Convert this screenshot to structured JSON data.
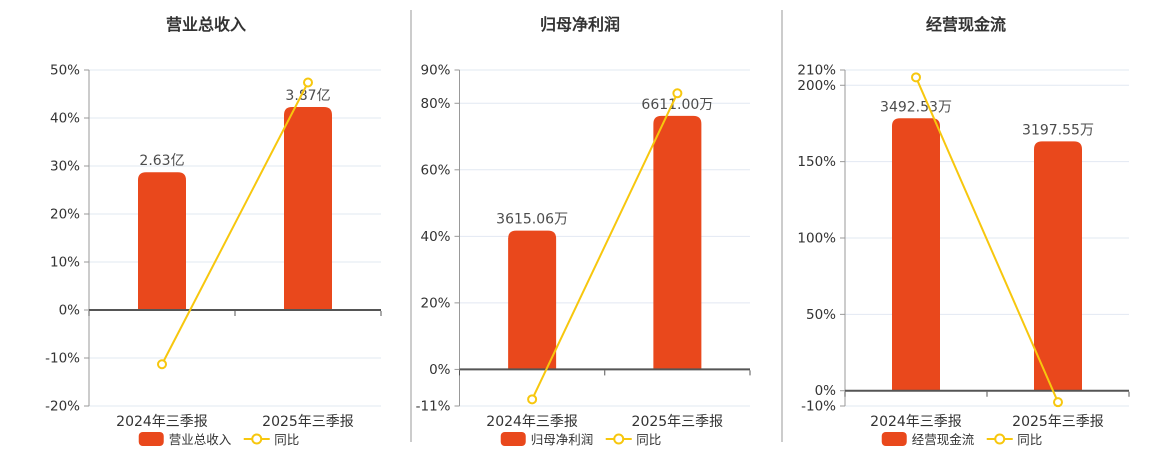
{
  "page": {
    "background": "#FFFFFF"
  },
  "colors": {
    "bar": "#E9481C",
    "line": "#F7C70E",
    "grid": "#E2E8F2",
    "axis": "#999999",
    "zero_line": "#555555",
    "title_text": "#333333",
    "tick_text": "#333333",
    "category_text": "#333333",
    "value_label_text": "#4D4D4D",
    "legend_text": "#333333",
    "divider": "#999999",
    "marker_fill": "#FFFFFF"
  },
  "chart_data": [
    {
      "key": "revenue",
      "type": "bar+line",
      "title": "营业总收入",
      "categories": [
        "2024年三季报",
        "2025年三季报"
      ],
      "category_keys": [
        "2024-q3",
        "2025-q3"
      ],
      "y_axis": {
        "min": -20,
        "max": 50,
        "tick_values": [
          50,
          40,
          30,
          20,
          10,
          0,
          -10,
          -20
        ],
        "tick_labels": [
          "50%",
          "40%",
          "30%",
          "20%",
          "10%",
          "0%",
          "-10%",
          "-20%"
        ]
      },
      "grid": true,
      "legend_position": "bottom",
      "bar_series": {
        "name": "营业总收入",
        "value_labels": [
          "2.63亿",
          "3.87亿"
        ],
        "drawn_top_pct": [
          28.7,
          42.3
        ]
      },
      "line_series": {
        "name": "同比",
        "values_pct": [
          -11.3,
          47.4
        ]
      }
    },
    {
      "key": "net-profit",
      "type": "bar+line",
      "title": "归母净利润",
      "categories": [
        "2024年三季报",
        "2025年三季报"
      ],
      "category_keys": [
        "2024-q3",
        "2025-q3"
      ],
      "y_axis": {
        "min": -11,
        "max": 90,
        "tick_values": [
          90,
          80,
          60,
          40,
          20,
          0,
          -11
        ],
        "tick_labels": [
          "90%",
          "80%",
          "60%",
          "40%",
          "20%",
          "0%",
          "-11%"
        ]
      },
      "grid": true,
      "legend_position": "bottom",
      "bar_series": {
        "name": "归母净利润",
        "value_labels": [
          "3615.06万",
          "6611.00万"
        ],
        "drawn_top_pct": [
          41.7,
          76.2
        ]
      },
      "line_series": {
        "name": "同比",
        "values_pct": [
          -9.0,
          83.0
        ]
      }
    },
    {
      "key": "cash-flow",
      "type": "bar+line",
      "title": "经营现金流",
      "categories": [
        "2024年三季报",
        "2025年三季报"
      ],
      "category_keys": [
        "2024-q3",
        "2025-q3"
      ],
      "y_axis": {
        "min": -10,
        "max": 210,
        "tick_values": [
          210,
          200,
          150,
          100,
          50,
          0,
          -10
        ],
        "tick_labels": [
          "210%",
          "200%",
          "150%",
          "100%",
          "50%",
          "0%",
          "-10%"
        ]
      },
      "grid": true,
      "legend_position": "bottom",
      "bar_series": {
        "name": "经营现金流",
        "value_labels": [
          "3492.53万",
          "3197.55万"
        ],
        "drawn_top_pct": [
          178.4,
          163.3
        ]
      },
      "line_series": {
        "name": "同比",
        "values_pct": [
          205.2,
          -7.5
        ]
      }
    }
  ]
}
